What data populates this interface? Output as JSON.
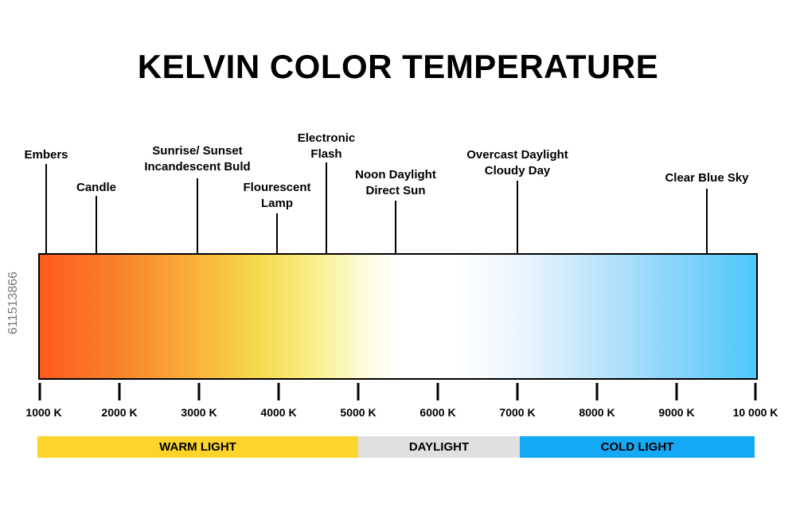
{
  "title": "KELVIN COLOR TEMPERATURE",
  "markers": [
    {
      "lines": [
        "Embers"
      ]
    },
    {
      "lines": [
        "Candle"
      ]
    },
    {
      "lines": [
        "Sunrise/ Sunset",
        "Incandescent Buld"
      ]
    },
    {
      "lines": [
        "Flourescent",
        "Lamp"
      ]
    },
    {
      "lines": [
        "Electronic",
        "Flash"
      ]
    },
    {
      "lines": [
        "Noon Daylight",
        "Direct Sun"
      ]
    },
    {
      "lines": [
        "Overcast Daylight",
        "Cloudy Day"
      ]
    },
    {
      "lines": [
        "Clear Blue Sky"
      ]
    }
  ],
  "scale": {
    "ticks": [
      "1000 K",
      "2000 K",
      "3000 K",
      "4000 K",
      "5000 K",
      "6000 K",
      "7000 K",
      "8000 K",
      "9000 K",
      "10 000 K"
    ]
  },
  "bands": [
    {
      "label": "WARM LIGHT",
      "color": "#fcd42a"
    },
    {
      "label": "DAYLIGHT",
      "color": "#e0e0e0"
    },
    {
      "label": "COLD LIGHT",
      "color": "#14a9f5"
    }
  ],
  "gradient_colors": {
    "warm_end": "#ff5a1e",
    "neutral": "#ffffff",
    "cold_end": "#4ec8fb"
  },
  "watermark": "611513866"
}
